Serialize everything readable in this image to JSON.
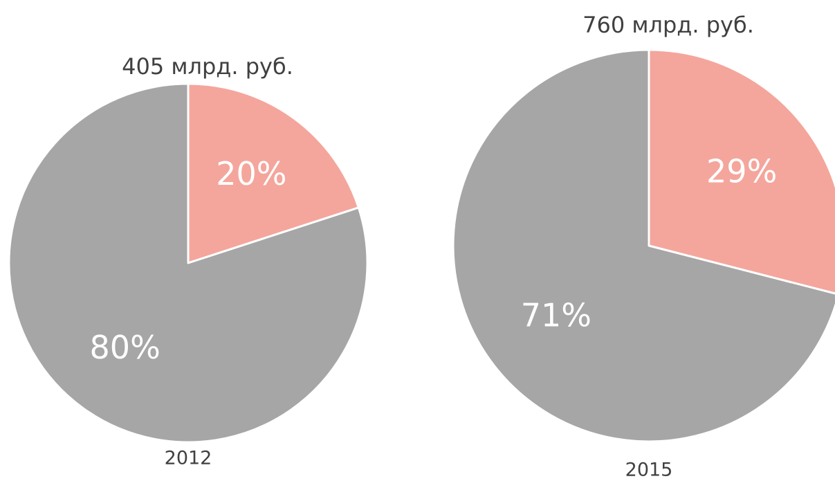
{
  "chart_data": [
    {
      "type": "pie",
      "title": "405 млрд. руб.",
      "xlabel": "2012",
      "values": [
        20,
        80
      ],
      "value_labels": [
        "20%",
        "80%"
      ],
      "colors": [
        "#f4a69c",
        "#a6a6a6"
      ]
    },
    {
      "type": "pie",
      "title": "760 млрд. руб.",
      "xlabel": "2015",
      "values": [
        29,
        71
      ],
      "value_labels": [
        "29%",
        "71%"
      ],
      "colors": [
        "#f4a69c",
        "#a6a6a6"
      ]
    }
  ]
}
